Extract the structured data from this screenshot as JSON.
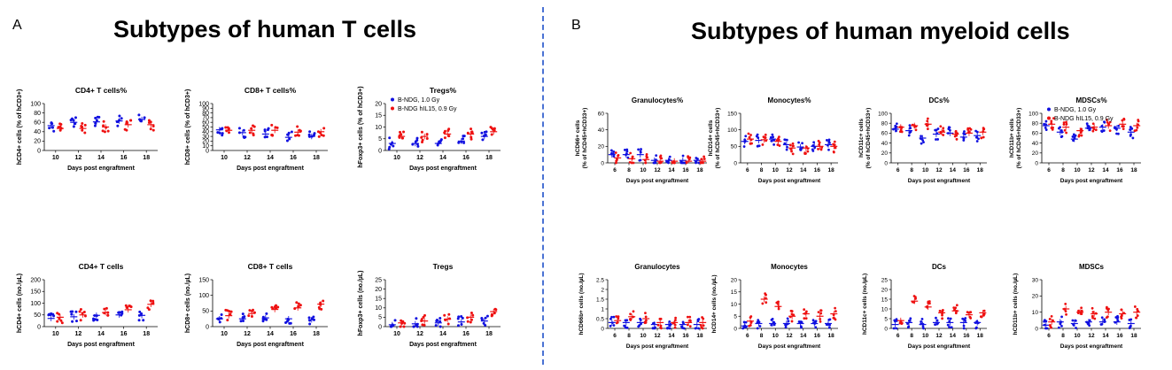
{
  "panels": [
    {
      "letter": "A",
      "title": "Subtypes of human T cells"
    },
    {
      "letter": "B",
      "title": "Subtypes of human myeloid cells"
    }
  ],
  "legend": {
    "series": [
      "B-NDG, 1.0 Gy",
      "B-NDG hIL15, 0.9 Gy"
    ]
  },
  "colors": {
    "blue": "#1010e0",
    "red": "#ee1111",
    "divider": "#4a72d4"
  },
  "chart_data": [
    {
      "type": "scatter",
      "title": "CD4+ T cells%",
      "ylabel": "hCD4+ cells (% of hCD3+)",
      "xlabel": "Days post engraftment",
      "categories": [
        "10",
        "12",
        "14",
        "16",
        "18"
      ],
      "ylim": [
        0,
        100
      ],
      "yticks": [
        0,
        20,
        40,
        60,
        80,
        100
      ],
      "series": [
        {
          "name": "B-NDG, 1.0 Gy",
          "means": [
            53,
            60,
            61,
            63,
            66
          ]
        },
        {
          "name": "B-NDG hIL15, 0.9 Gy",
          "means": [
            47,
            47,
            50,
            55,
            55
          ]
        }
      ]
    },
    {
      "type": "scatter",
      "title": "CD8+ T cells%",
      "ylabel": "hCD8+ cells (% of hCD3+)",
      "xlabel": "Days post engraftment",
      "categories": [
        "10",
        "12",
        "14",
        "16",
        "18"
      ],
      "ylim": [
        0,
        100
      ],
      "yticks": [
        0,
        10,
        20,
        30,
        40,
        50,
        60,
        70,
        80,
        90,
        100
      ],
      "series": [
        {
          "name": "B-NDG, 1.0 Gy",
          "means": [
            44,
            38,
            35,
            28,
            30
          ]
        },
        {
          "name": "B-NDG hIL15, 0.9 Gy",
          "means": [
            43,
            43,
            43,
            39,
            40
          ]
        }
      ]
    },
    {
      "type": "scatter",
      "title": "Tregs%",
      "ylabel": "hFoxp3+ cells (% of hCD3+)",
      "xlabel": "Days post engraftment",
      "categories": [
        "10",
        "12",
        "14",
        "16",
        "18"
      ],
      "ylim": [
        0,
        20
      ],
      "yticks": [
        0,
        5,
        10,
        15,
        20
      ],
      "legend": "top-left",
      "series": [
        {
          "name": "B-NDG, 1.0 Gy",
          "means": [
            3,
            3,
            3,
            4,
            6
          ]
        },
        {
          "name": "B-NDG hIL15, 0.9 Gy",
          "means": [
            6,
            6,
            7,
            7,
            8
          ]
        }
      ]
    },
    {
      "type": "scatter",
      "title": "CD4+ T cells",
      "ylabel": "hCD4+ cells (no./µL)",
      "xlabel": "Days post engraftment",
      "categories": [
        "10",
        "12",
        "14",
        "16",
        "18"
      ],
      "ylim": [
        0,
        200
      ],
      "yticks": [
        0,
        50,
        100,
        150,
        200
      ],
      "series": [
        {
          "name": "B-NDG, 1.0 Gy",
          "means": [
            35,
            42,
            48,
            50,
            48
          ]
        },
        {
          "name": "B-NDG hIL15, 0.9 Gy",
          "means": [
            40,
            50,
            60,
            72,
            95
          ]
        }
      ]
    },
    {
      "type": "scatter",
      "title": "CD8+ T cells",
      "ylabel": "hCD8+ cells (no./µL)",
      "xlabel": "Days post engraftment",
      "categories": [
        "10",
        "12",
        "14",
        "16",
        "18"
      ],
      "ylim": [
        0,
        150
      ],
      "yticks": [
        0,
        50,
        100,
        150
      ],
      "series": [
        {
          "name": "B-NDG, 1.0 Gy",
          "means": [
            25,
            25,
            28,
            25,
            22
          ]
        },
        {
          "name": "B-NDG hIL15, 0.9 Gy",
          "means": [
            35,
            42,
            55,
            60,
            72
          ]
        }
      ]
    },
    {
      "type": "scatter",
      "title": "Tregs",
      "ylabel": "hFoxp3+ cells (no./µL)",
      "xlabel": "Days post engraftment",
      "categories": [
        "10",
        "12",
        "14",
        "16",
        "18"
      ],
      "ylim": [
        0,
        25
      ],
      "yticks": [
        0,
        5,
        10,
        15,
        20,
        25
      ],
      "series": [
        {
          "name": "B-NDG, 1.0 Gy",
          "means": [
            1,
            1.5,
            2,
            2.5,
            3
          ]
        },
        {
          "name": "B-NDG hIL15, 0.9 Gy",
          "means": [
            2,
            3,
            4,
            5,
            8
          ]
        }
      ]
    },
    {
      "type": "scatter",
      "title": "Granulocytes%",
      "ylabel": "hCD66+ cells\n(% of hCD45+hCD33+)",
      "xlabel": "Days post engraftment",
      "categories": [
        "6",
        "8",
        "10",
        "12",
        "14",
        "16",
        "18"
      ],
      "ylim": [
        0,
        60
      ],
      "yticks": [
        0,
        20,
        40,
        60
      ],
      "series": [
        {
          "name": "B-NDG, 1.0 Gy",
          "means": [
            10,
            10,
            10,
            3,
            3,
            3,
            3
          ]
        },
        {
          "name": "B-NDG hIL15, 0.9 Gy",
          "means": [
            6,
            5,
            4,
            2,
            2,
            2,
            2
          ]
        }
      ]
    },
    {
      "type": "scatter",
      "title": "Monocytes%",
      "ylabel": "hCD14+ cells\n(% of hCD45+hCD33+)",
      "xlabel": "Days post engraftment",
      "categories": [
        "6",
        "8",
        "10",
        "12",
        "14",
        "16",
        "18"
      ],
      "ylim": [
        0,
        150
      ],
      "yticks": [
        0,
        50,
        100,
        150
      ],
      "series": [
        {
          "name": "B-NDG, 1.0 Gy",
          "means": [
            65,
            68,
            72,
            55,
            48,
            50,
            55
          ]
        },
        {
          "name": "B-NDG hIL15, 0.9 Gy",
          "means": [
            72,
            70,
            65,
            45,
            45,
            50,
            50
          ]
        }
      ]
    },
    {
      "type": "scatter",
      "title": "DCs%",
      "ylabel": "hCD11c+ cells\n(% of hCD45+hCD33+)",
      "xlabel": "Days post engraftment",
      "categories": [
        "6",
        "8",
        "10",
        "12",
        "14",
        "16",
        "18"
      ],
      "ylim": [
        0,
        100
      ],
      "yticks": [
        0,
        20,
        40,
        60,
        80,
        100
      ],
      "series": [
        {
          "name": "B-NDG, 1.0 Gy",
          "means": [
            68,
            65,
            50,
            58,
            60,
            52,
            55
          ]
        },
        {
          "name": "B-NDG hIL15, 0.9 Gy",
          "means": [
            72,
            75,
            78,
            62,
            58,
            60,
            62
          ]
        }
      ]
    },
    {
      "type": "scatter",
      "title": "MDSCs%",
      "ylabel": "hCD11b+ cells\n(% of hCD45+hCD33+)",
      "xlabel": "Days post engraftment",
      "categories": [
        "6",
        "8",
        "10",
        "12",
        "14",
        "16",
        "18"
      ],
      "ylim": [
        0,
        100
      ],
      "yticks": [
        0,
        20,
        40,
        60,
        80,
        100
      ],
      "legend": "top-left",
      "series": [
        {
          "name": "B-NDG, 1.0 Gy",
          "means": [
            75,
            62,
            48,
            70,
            72,
            70,
            62
          ]
        },
        {
          "name": "B-NDG hIL15, 0.9 Gy",
          "means": [
            78,
            72,
            65,
            72,
            75,
            78,
            75
          ]
        }
      ]
    },
    {
      "type": "scatter",
      "title": "Granulocytes",
      "ylabel": "hCD66b+ cells (no./µL)",
      "xlabel": "Days post engraftment",
      "categories": [
        "6",
        "8",
        "10",
        "12",
        "14",
        "16",
        "18"
      ],
      "ylim": [
        0,
        2.5
      ],
      "yticks": [
        0,
        0.5,
        1.0,
        1.5,
        2.0,
        2.5
      ],
      "series": [
        {
          "name": "B-NDG, 1.0 Gy",
          "means": [
            0.3,
            0.3,
            0.3,
            0.2,
            0.2,
            0.2,
            0.2
          ]
        },
        {
          "name": "B-NDG hIL15, 0.9 Gy",
          "means": [
            0.4,
            0.6,
            0.5,
            0.3,
            0.3,
            0.3,
            0.3
          ]
        }
      ]
    },
    {
      "type": "scatter",
      "title": "Monocytes",
      "ylabel": "hCD14+ cells (no./µL)",
      "xlabel": "Days post engraftment",
      "categories": [
        "6",
        "8",
        "10",
        "12",
        "14",
        "16",
        "18"
      ],
      "ylim": [
        0,
        20
      ],
      "yticks": [
        0,
        5,
        10,
        15,
        20
      ],
      "series": [
        {
          "name": "B-NDG, 1.0 Gy",
          "means": [
            1,
            2,
            2,
            2,
            2,
            2,
            2
          ]
        },
        {
          "name": "B-NDG hIL15, 0.9 Gy",
          "means": [
            3,
            12,
            9,
            5,
            6,
            5,
            6
          ]
        }
      ]
    },
    {
      "type": "scatter",
      "title": "DCs",
      "ylabel": "hCD11c+ cells (no./µL)",
      "xlabel": "Days post engraftment",
      "categories": [
        "6",
        "8",
        "10",
        "12",
        "14",
        "16",
        "18"
      ],
      "ylim": [
        0,
        25
      ],
      "yticks": [
        0,
        5,
        10,
        15,
        20,
        25
      ],
      "series": [
        {
          "name": "B-NDG, 1.0 Gy",
          "means": [
            2,
            3,
            2,
            3,
            3,
            3,
            3
          ]
        },
        {
          "name": "B-NDG hIL15, 0.9 Gy",
          "means": [
            4,
            14,
            11,
            8,
            9,
            7,
            8
          ]
        }
      ]
    },
    {
      "type": "scatter",
      "title": "MDSCs",
      "ylabel": "hCD11b+ cells (no./µL)",
      "xlabel": "Days post engraftment",
      "categories": [
        "6",
        "8",
        "10",
        "12",
        "14",
        "16",
        "18"
      ],
      "ylim": [
        0,
        30
      ],
      "yticks": [
        0,
        10,
        20,
        30
      ],
      "series": [
        {
          "name": "B-NDG, 1.0 Gy",
          "means": [
            2,
            4,
            3,
            4,
            4,
            4,
            3
          ]
        },
        {
          "name": "B-NDG hIL15, 0.9 Gy",
          "means": [
            4,
            12,
            10,
            9,
            10,
            9,
            10
          ]
        }
      ]
    }
  ]
}
